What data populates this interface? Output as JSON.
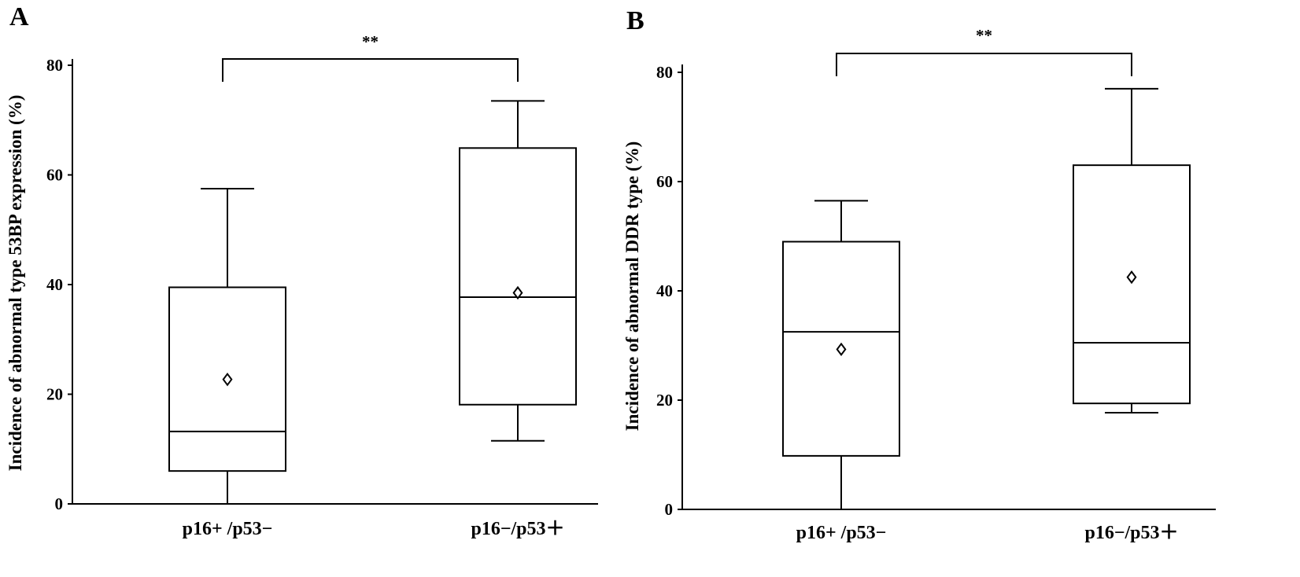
{
  "chart_data": [
    {
      "type": "box",
      "panel_label": "A",
      "ylabel": "Incidence of abnormal type 53BP expression (%)",
      "ylim": [
        0,
        80
      ],
      "yticks": [
        0,
        20,
        40,
        60,
        80
      ],
      "categories": [
        "p16+ /p53−",
        "p16−/p53＋"
      ],
      "boxes": [
        {
          "min": 0,
          "q1": 6,
          "median": 13.2,
          "q3": 39.5,
          "max": 57.5,
          "mean": 22.7
        },
        {
          "min": 11.5,
          "q1": 18.1,
          "median": 37.7,
          "q3": 64.9,
          "max": 73.5,
          "mean": 38.5
        }
      ],
      "significance": "**"
    },
    {
      "type": "box",
      "panel_label": "B",
      "ylabel": "Incidence of abnormal DDR type (%)",
      "ylim": [
        0,
        80
      ],
      "yticks": [
        0,
        20,
        40,
        60,
        80
      ],
      "categories": [
        "p16+ /p53−",
        "p16−/p53＋"
      ],
      "boxes": [
        {
          "min": 0,
          "q1": 9.8,
          "median": 32.5,
          "q3": 49,
          "max": 56.5,
          "mean": 29.3
        },
        {
          "min": 17.7,
          "q1": 19.4,
          "median": 30.5,
          "q3": 63,
          "max": 77,
          "mean": 42.5
        }
      ],
      "significance": "**"
    }
  ]
}
